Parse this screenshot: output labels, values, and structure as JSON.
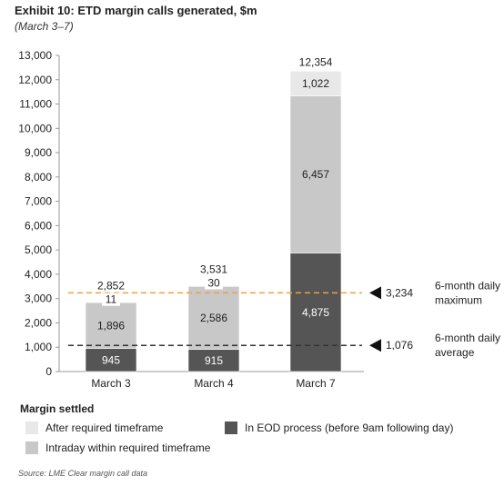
{
  "title": "Exhibit 10: ETD margin calls generated, $m",
  "subtitle": "(March 3–7)",
  "source": "Source: LME Clear margin call data",
  "legend": {
    "title": "Margin settled",
    "items": [
      {
        "label": "After required timeframe",
        "color": "#e8e8e8"
      },
      {
        "label": "In EOD process (before 9am following day)",
        "color": "#555555"
      },
      {
        "label": "Intraday within required timeframe",
        "color": "#c8c8c8"
      }
    ]
  },
  "chart_data": {
    "type": "bar",
    "stacked": true,
    "categories": [
      "March 3",
      "March 4",
      "March 7"
    ],
    "series": [
      {
        "name": "In EOD process (before 9am following day)",
        "values": [
          945,
          915,
          4875
        ],
        "labels": [
          "945",
          "915",
          "4,875"
        ],
        "color": "#555555"
      },
      {
        "name": "Intraday within required timeframe",
        "values": [
          1896,
          2586,
          6457
        ],
        "labels": [
          "1,896",
          "2,586",
          "6,457"
        ],
        "color": "#c8c8c8"
      },
      {
        "name": "After required timeframe",
        "values": [
          11,
          30,
          1022
        ],
        "labels": [
          "11",
          "30",
          "1,022"
        ],
        "color": "#e8e8e8"
      }
    ],
    "totals": [
      2852,
      3531,
      12354
    ],
    "total_labels": [
      "2,852",
      "3,531",
      "12,354"
    ],
    "ylim": [
      0,
      13000
    ],
    "yticks": [
      0,
      1000,
      2000,
      3000,
      4000,
      5000,
      6000,
      7000,
      8000,
      9000,
      10000,
      11000,
      12000,
      13000
    ],
    "ytick_labels": [
      "0",
      "1,000",
      "2,000",
      "3,000",
      "4,000",
      "5,000",
      "6,000",
      "7,000",
      "8,000",
      "9,000",
      "10,000",
      "11,000",
      "12,000",
      "13,000"
    ],
    "reference_lines": [
      {
        "value": 3234,
        "label": "3,234",
        "text_line1": "6-month daily",
        "text_line2": "maximum",
        "color": "#f0a040"
      },
      {
        "value": 1076,
        "label": "1,076",
        "text_line1": "6-month daily",
        "text_line2": "average",
        "color": "#333333"
      }
    ]
  }
}
